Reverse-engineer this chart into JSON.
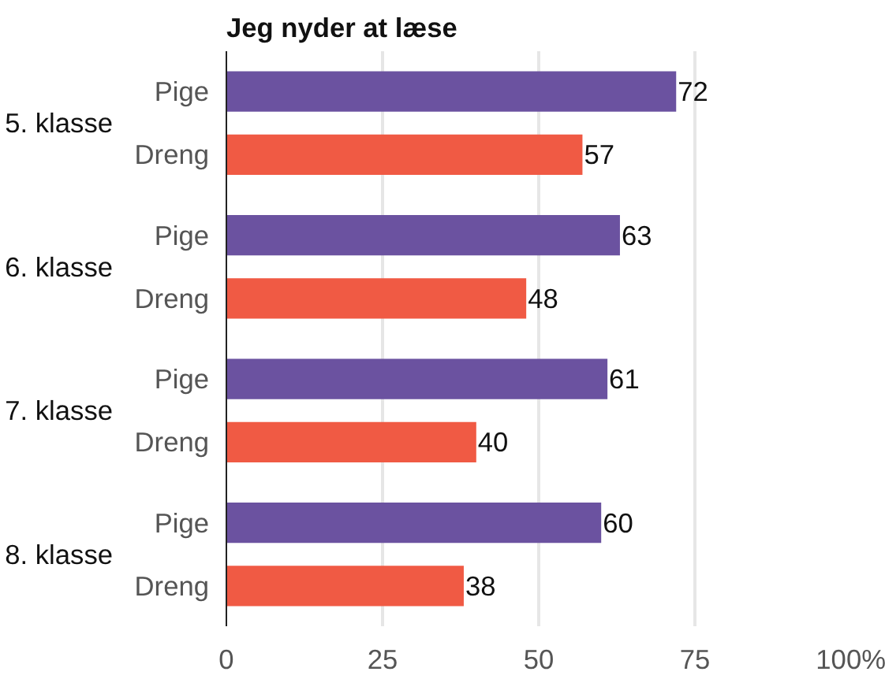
{
  "chart_data": {
    "type": "bar",
    "orientation": "horizontal",
    "title": "Jeg nyder at læse",
    "categories": [
      "5. klasse",
      "6. klasse",
      "7. klasse",
      "8. klasse"
    ],
    "series": [
      {
        "name": "Pige",
        "color": "#6b52a0",
        "values": [
          72,
          63,
          61,
          60
        ]
      },
      {
        "name": "Dreng",
        "color": "#f05a44",
        "values": [
          57,
          48,
          40,
          38
        ]
      }
    ],
    "xlim": [
      0,
      100
    ],
    "xticks": [
      0,
      25,
      50,
      75,
      {
        "value": 100,
        "label": "100%"
      }
    ],
    "grid": "x",
    "data_labels": true
  }
}
